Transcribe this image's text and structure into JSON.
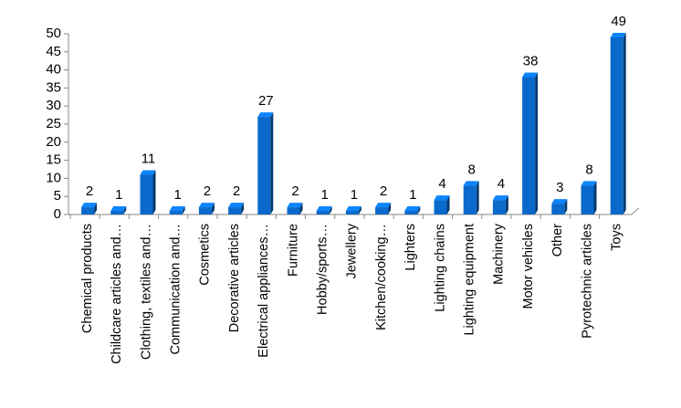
{
  "chart_data": {
    "type": "bar3d",
    "categories": [
      "Chemical products",
      "Childcare articles and…",
      "Clothing, textiles and…",
      "Communication and…",
      "Cosmetics",
      "Decorative articles",
      "Electrical appliances…",
      "Furniture",
      "Hobby/sports…",
      "Jewellery",
      "Kitchen/cooking…",
      "Lighters",
      "Lighting chains",
      "Lighting equipment",
      "Machinery",
      "Motor vehicles",
      "Other",
      "Pyrotechnic articles",
      "Toys"
    ],
    "values": [
      2,
      1,
      11,
      1,
      2,
      2,
      27,
      2,
      1,
      1,
      2,
      1,
      4,
      8,
      4,
      38,
      3,
      8,
      49
    ],
    "color": "#0a6acb",
    "ylim": [
      0,
      50
    ],
    "yticks": [
      0,
      5,
      10,
      15,
      20,
      25,
      30,
      35,
      40,
      45,
      50
    ],
    "data_labels": true
  }
}
